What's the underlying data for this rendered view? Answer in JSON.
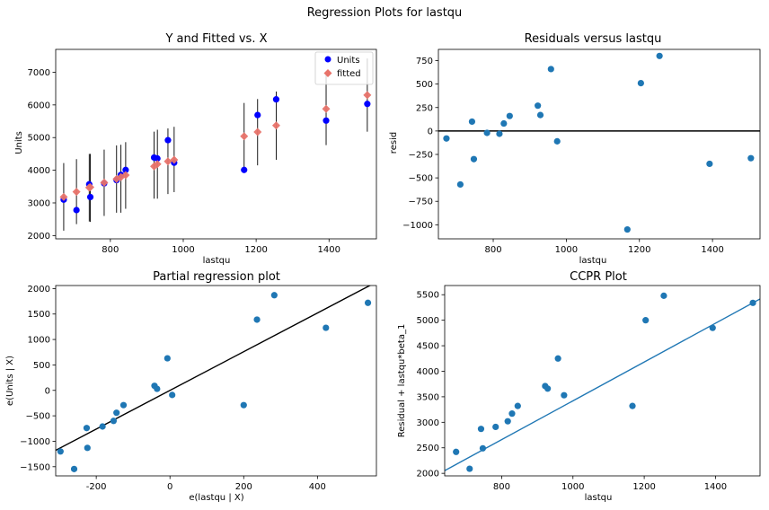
{
  "figure": {
    "suptitle": "Regression Plots for lastqu"
  },
  "chart_data": [
    {
      "id": "yfit",
      "type": "scatter",
      "title": "Y and Fitted vs. X",
      "xlabel": "lastqu",
      "ylabel": "Units",
      "xlim": [
        650,
        1530
      ],
      "ylim": [
        1900,
        7700
      ],
      "xticks": [
        800,
        1000,
        1200,
        1400
      ],
      "yticks": [
        2000,
        3000,
        4000,
        5000,
        6000,
        7000
      ],
      "legend_position": "top-right",
      "grid": false,
      "series": [
        {
          "name": "Units",
          "marker": "circle",
          "color": "#0000ff",
          "x": [
            672,
            707,
            742,
            745,
            783,
            817,
            829,
            842,
            920,
            929,
            958,
            975,
            1167,
            1204,
            1255,
            1392,
            1505
          ],
          "y": [
            3100,
            2780,
            3570,
            3180,
            3600,
            3700,
            3860,
            4010,
            4390,
            4360,
            4920,
            4230,
            4010,
            5690,
            6170,
            5520,
            6030
          ]
        },
        {
          "name": "fitted",
          "marker": "diamond",
          "color": "#e8736a",
          "x": [
            672,
            707,
            742,
            745,
            783,
            817,
            829,
            842,
            920,
            929,
            958,
            975,
            1167,
            1204,
            1255,
            1392,
            1505
          ],
          "y": [
            3180,
            3340,
            3470,
            3480,
            3620,
            3730,
            3790,
            3850,
            4120,
            4190,
            4270,
            4320,
            5040,
            5170,
            5370,
            5880,
            6300
          ]
        }
      ],
      "error_bars": {
        "color": "#000000",
        "x": [
          672,
          707,
          742,
          745,
          783,
          817,
          829,
          842,
          920,
          929,
          958,
          975,
          1167,
          1204,
          1255,
          1392,
          1505
        ],
        "low": [
          2150,
          2350,
          2430,
          2420,
          2600,
          2700,
          2700,
          2820,
          3130,
          3130,
          3270,
          3330,
          4010,
          4150,
          4320,
          4770,
          5180
        ],
        "high": [
          4220,
          4340,
          4500,
          4500,
          4630,
          4760,
          4780,
          4860,
          5180,
          5240,
          5280,
          5330,
          6060,
          6180,
          6410,
          6990,
          7420
        ]
      }
    },
    {
      "id": "resid",
      "type": "scatter",
      "title": "Residuals versus lastqu",
      "xlabel": "lastqu",
      "ylabel": "resid",
      "xlim": [
        650,
        1530
      ],
      "ylim": [
        -1150,
        870
      ],
      "xticks": [
        800,
        1000,
        1200,
        1400
      ],
      "yticks": [
        -1000,
        -750,
        -500,
        -250,
        0,
        250,
        500,
        750
      ],
      "zero_line": 0,
      "grid": false,
      "series": [
        {
          "color": "#1f77b4",
          "x": [
            672,
            710,
            742,
            747,
            783,
            817,
            829,
            845,
            922,
            929,
            958,
            975,
            1167,
            1204,
            1255,
            1392,
            1505
          ],
          "y": [
            -80,
            -570,
            100,
            -300,
            -20,
            -30,
            80,
            160,
            270,
            170,
            660,
            -110,
            -1050,
            510,
            800,
            -350,
            -290
          ]
        }
      ]
    },
    {
      "id": "partreg",
      "type": "scatter",
      "title": "Partial regression plot",
      "xlabel": "e(lastqu | X)",
      "ylabel": "e(Units | X)",
      "xlim": [
        -310,
        560
      ],
      "ylim": [
        -1680,
        2060
      ],
      "xticks": [
        -200,
        0,
        200,
        400
      ],
      "yticks": [
        -1500,
        -1000,
        -500,
        0,
        500,
        1000,
        1500,
        2000
      ],
      "fit_line": {
        "color": "#000000",
        "slope": 3.8,
        "intercept": 0
      },
      "grid": false,
      "series": [
        {
          "color": "#1f77b4",
          "x": [
            -297,
            -260,
            -226,
            -224,
            -183,
            -153,
            -145,
            -126,
            -42,
            -35,
            -7,
            6,
            200,
            236,
            283,
            423,
            537
          ],
          "y": [
            -1200,
            -1545,
            -740,
            -1130,
            -710,
            -600,
            -440,
            -290,
            90,
            30,
            630,
            -90,
            -290,
            1390,
            1870,
            1230,
            1720
          ]
        }
      ]
    },
    {
      "id": "ccpr",
      "type": "scatter",
      "title": "CCPR Plot",
      "xlabel": "lastqu",
      "ylabel": "Residual + lastqu*beta_1",
      "xlim": [
        640,
        1525
      ],
      "ylim": [
        1950,
        5680
      ],
      "xticks": [
        800,
        1000,
        1200,
        1400
      ],
      "yticks": [
        2000,
        2500,
        3000,
        3500,
        4000,
        4500,
        5000,
        5500
      ],
      "fit_line": {
        "color": "#1f77b4",
        "slope": 3.8,
        "intercept": 0
      },
      "grid": false,
      "series": [
        {
          "color": "#1f77b4",
          "x": [
            672,
            710,
            742,
            747,
            783,
            817,
            829,
            845,
            922,
            929,
            958,
            975,
            1167,
            1204,
            1255,
            1392,
            1505
          ],
          "y": [
            2420,
            2090,
            2870,
            2490,
            2910,
            3020,
            3170,
            3320,
            3710,
            3660,
            4250,
            3530,
            3320,
            5000,
            5480,
            4850,
            5340
          ]
        }
      ]
    }
  ]
}
